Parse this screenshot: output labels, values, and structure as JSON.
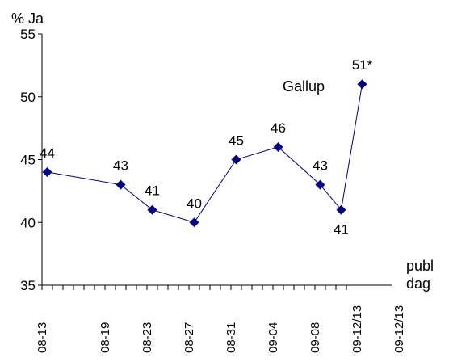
{
  "chart_data": {
    "type": "line",
    "ylabel": "% Ja",
    "xlabel": "publ\ndag",
    "ylim": [
      35,
      55
    ],
    "yticks": [
      35,
      40,
      45,
      50,
      55
    ],
    "grid": false,
    "x_tick_count": 29,
    "x_labels": [
      {
        "tick": 0,
        "label": "08-13"
      },
      {
        "tick": 6,
        "label": "08-19"
      },
      {
        "tick": 10,
        "label": "08-23"
      },
      {
        "tick": 14,
        "label": "08-27"
      },
      {
        "tick": 18,
        "label": "08-31"
      },
      {
        "tick": 22,
        "label": "09-04"
      },
      {
        "tick": 26,
        "label": "09-08"
      },
      {
        "tick": 30,
        "label": "09-12/13"
      },
      {
        "tick": 34,
        "label": "09-12/13"
      }
    ],
    "series": [
      {
        "name": "Gallup",
        "color": "#000080",
        "marker": "diamond",
        "points": [
          {
            "x": "08-13",
            "pos": 0.5,
            "y": 44,
            "label": "44"
          },
          {
            "x": "08-20",
            "pos": 7.5,
            "y": 43,
            "label": "43"
          },
          {
            "x": "08-23",
            "pos": 10.5,
            "y": 41,
            "label": "41"
          },
          {
            "x": "08-27",
            "pos": 14.5,
            "y": 40,
            "label": "40"
          },
          {
            "x": "08-31",
            "pos": 18.5,
            "y": 45,
            "label": "45"
          },
          {
            "x": "09-04",
            "pos": 22.5,
            "y": 46,
            "label": "46"
          },
          {
            "x": "09-09",
            "pos": 26.5,
            "y": 43,
            "label": "43"
          },
          {
            "x": "09-12",
            "pos": 28.5,
            "y": 41,
            "label": "41"
          },
          {
            "x": "09-13",
            "pos": 30.5,
            "y": 51,
            "label": "51*"
          }
        ]
      }
    ]
  }
}
